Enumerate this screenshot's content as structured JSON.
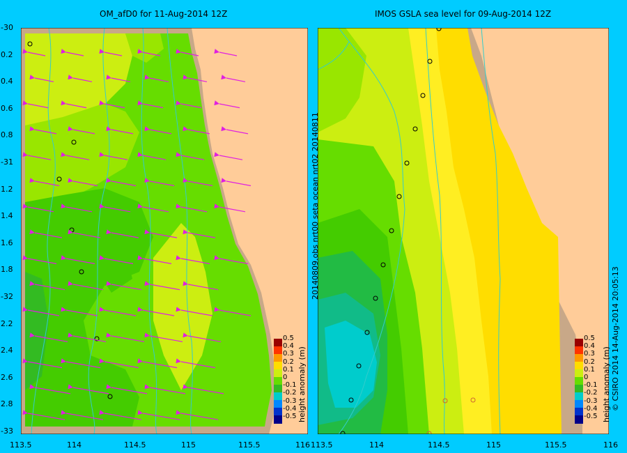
{
  "left_panel": {
    "title": "OM_afD0  for 11-Aug-2014 12Z",
    "lat_ticks": [
      "-30",
      "0.2",
      "0.4",
      "0.6",
      "0.8",
      "-31",
      "1.2",
      "1.4",
      "1.6",
      "1.8",
      "-32",
      "2.2",
      "2.4",
      "2.6",
      "2.8",
      "-33"
    ],
    "colorbar_label": "height anomaly (m)"
  },
  "right_panel": {
    "title": "IMOS  GSLA sea level   for 09-Aug-2014 12Z",
    "side_label": "20140809.obs  nrt00  seta    ocean  nrt02  20140811",
    "colorbar_label": "height anomaly (m)"
  },
  "lon_ticks_left": [
    "113.5",
    "114",
    "114.5",
    "115",
    "115.5",
    "116"
  ],
  "lon_ticks_right": [
    "113.5",
    "114",
    "114.5",
    "115",
    "115.5",
    "116"
  ],
  "colorbar_ticks": [
    "0.5",
    "0.4",
    "0.3",
    "0.2",
    "0.1",
    "0",
    "-0.1",
    "-0.2",
    "-0.3",
    "-0.4",
    "-0.5"
  ],
  "credit": "© CSIRO 2014   14-Aug-2014 20:05:13",
  "colors": {
    "land": "#ffcc99",
    "coast": "#c8a888",
    "background": "#00ccff",
    "vectors": "#e020e0",
    "contour": "#33cccc"
  }
}
